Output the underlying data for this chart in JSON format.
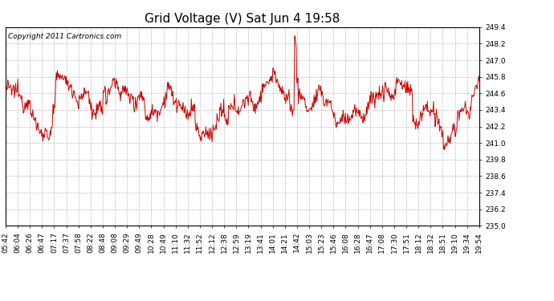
{
  "title": "Grid Voltage (V) Sat Jun 4 19:58",
  "copyright": "Copyright 2011 Cartronics.com",
  "line_color": "#cc0000",
  "bg_color": "#ffffff",
  "plot_bg_color": "#ffffff",
  "grid_color": "#bbbbbb",
  "ylim": [
    235.0,
    249.4
  ],
  "yticks": [
    235.0,
    236.2,
    237.4,
    238.6,
    239.8,
    241.0,
    242.2,
    243.4,
    244.6,
    245.8,
    247.0,
    248.2,
    249.4
  ],
  "xtick_labels": [
    "05:42",
    "06:04",
    "06:26",
    "06:47",
    "07:17",
    "07:37",
    "07:58",
    "08:22",
    "08:48",
    "09:08",
    "09:29",
    "09:49",
    "10:28",
    "10:49",
    "11:10",
    "11:32",
    "11:52",
    "12:12",
    "12:38",
    "12:59",
    "13:19",
    "13:41",
    "14:01",
    "14:21",
    "14:42",
    "15:03",
    "15:23",
    "15:46",
    "16:08",
    "16:28",
    "16:47",
    "17:08",
    "17:30",
    "17:51",
    "18:12",
    "18:32",
    "18:51",
    "19:10",
    "19:34",
    "19:54"
  ],
  "title_fontsize": 11,
  "tick_fontsize": 6.5,
  "copyright_fontsize": 6.5,
  "line_width": 0.7
}
